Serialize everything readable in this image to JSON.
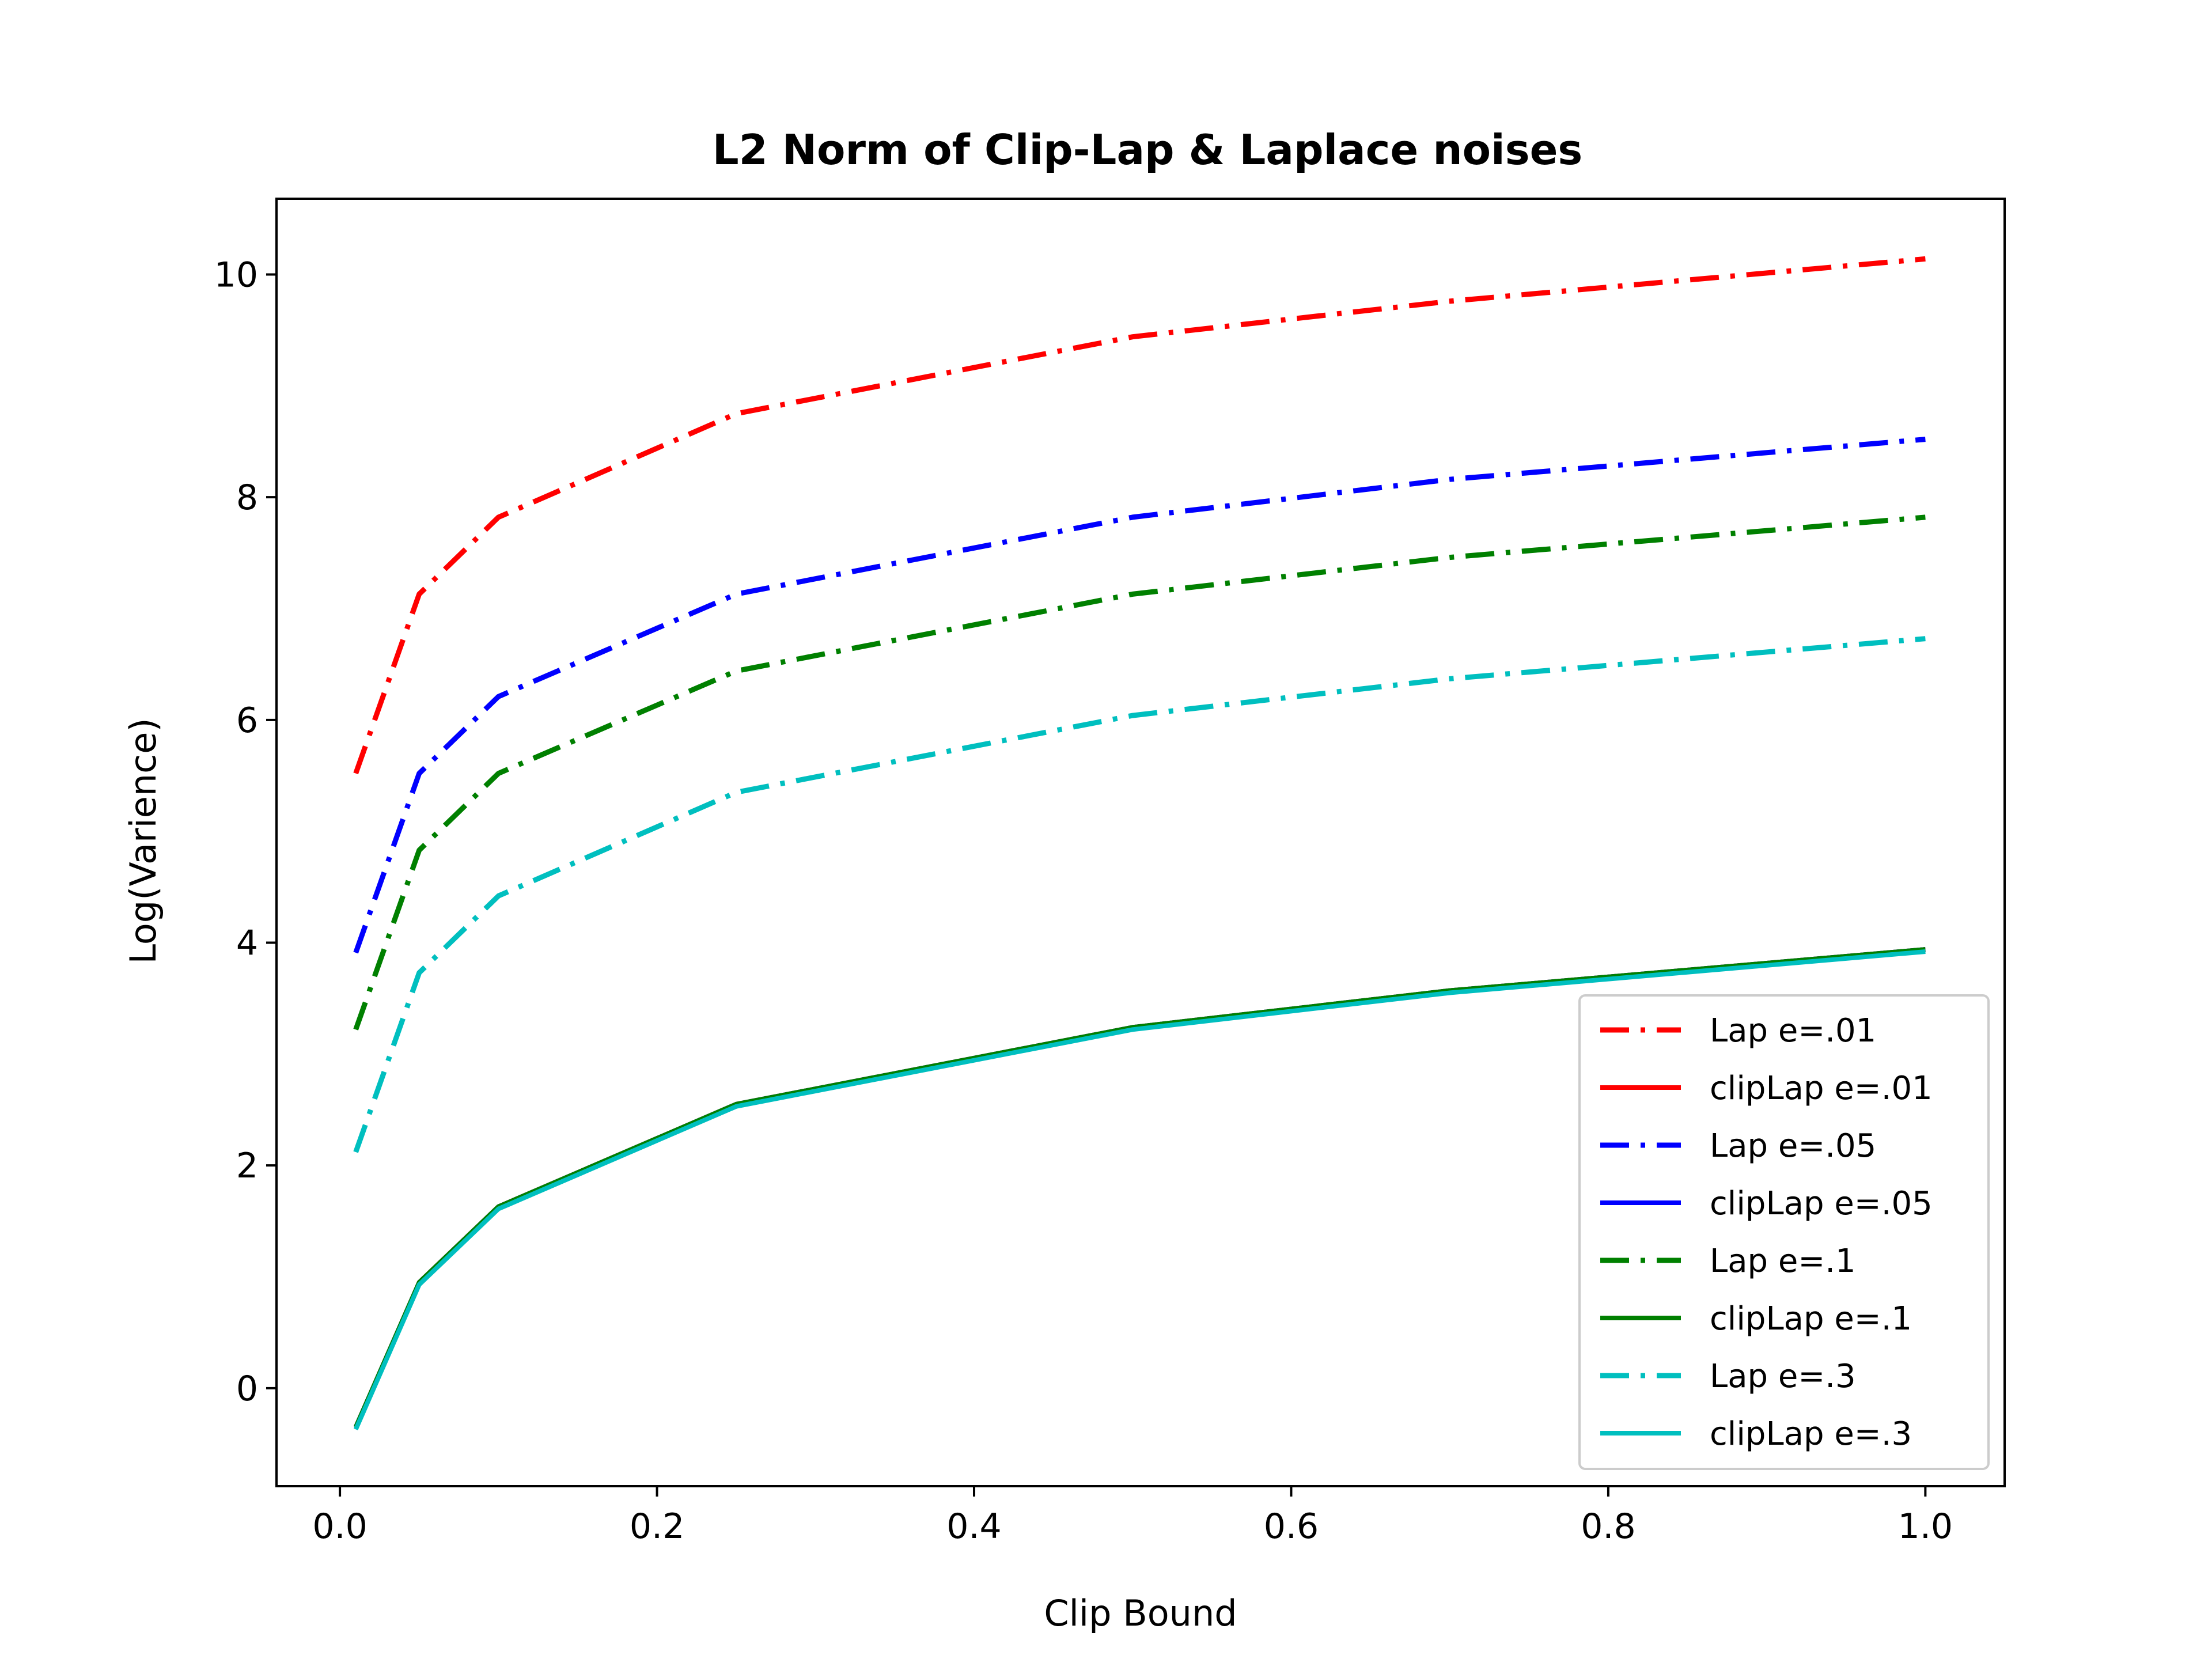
{
  "chart_data": {
    "type": "line",
    "title": "L2 Norm of Clip-Lap & Laplace noises",
    "xlabel": "Clip Bound",
    "ylabel": "Log(Varience)",
    "xlim": [
      -0.04,
      1.05
    ],
    "ylim": [
      -0.88,
      10.68
    ],
    "x_ticks": [
      0.0,
      0.2,
      0.4,
      0.6,
      0.8,
      1.0
    ],
    "x_tick_labels": [
      "0.0",
      "0.2",
      "0.4",
      "0.6",
      "0.8",
      "1.0"
    ],
    "y_ticks": [
      0,
      2,
      4,
      6,
      8,
      10
    ],
    "y_tick_labels": [
      "0",
      "2",
      "4",
      "6",
      "8",
      "10"
    ],
    "grid": false,
    "legend_position": "lower-right",
    "x": [
      0.01,
      0.05,
      0.1,
      0.25,
      0.5,
      0.7,
      1.0
    ],
    "series": [
      {
        "name": "Lap e=.01",
        "color": "#ff0000",
        "style": "dashdot",
        "values": [
          5.52,
          7.13,
          7.82,
          8.75,
          9.44,
          9.76,
          10.14
        ]
      },
      {
        "name": "clipLap e=.01",
        "color": "#ff0000",
        "style": "solid",
        "values": [
          -0.35,
          0.95,
          1.63,
          2.55,
          3.24,
          3.57,
          3.94
        ]
      },
      {
        "name": "Lap e=.05",
        "color": "#0000ff",
        "style": "dashdot",
        "values": [
          3.91,
          5.52,
          6.21,
          7.13,
          7.82,
          8.16,
          8.52
        ]
      },
      {
        "name": "clipLap e=.05",
        "color": "#0000ff",
        "style": "solid",
        "values": [
          -0.35,
          0.95,
          1.63,
          2.55,
          3.24,
          3.57,
          3.94
        ]
      },
      {
        "name": "Lap e=.1",
        "color": "#008000",
        "style": "dashdot",
        "values": [
          3.22,
          4.83,
          5.52,
          6.44,
          7.13,
          7.46,
          7.82
        ]
      },
      {
        "name": "clipLap e=.1",
        "color": "#008000",
        "style": "solid",
        "values": [
          -0.35,
          0.95,
          1.63,
          2.55,
          3.24,
          3.57,
          3.94
        ]
      },
      {
        "name": "Lap e=.3",
        "color": "#00bfbf",
        "style": "dashdot",
        "values": [
          2.12,
          3.73,
          4.42,
          5.35,
          6.04,
          6.37,
          6.73
        ]
      },
      {
        "name": "clipLap e=.3",
        "color": "#00bfbf",
        "style": "solid",
        "values": [
          -0.37,
          0.93,
          1.61,
          2.53,
          3.22,
          3.55,
          3.92
        ]
      }
    ]
  }
}
